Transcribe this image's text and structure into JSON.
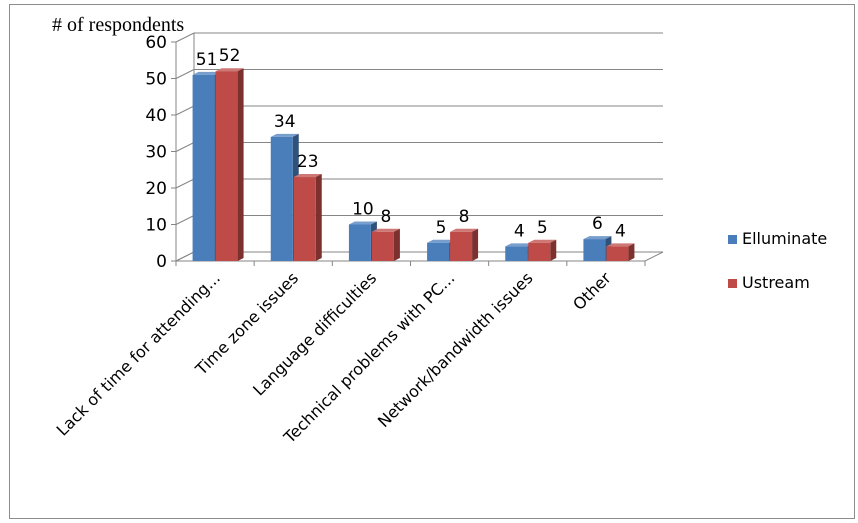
{
  "chart_data": {
    "type": "bar",
    "title": "",
    "ylabel": "# of respondents",
    "xlabel": "",
    "categories": [
      "Lack of time for attending...",
      "Time zone issues",
      "Language difficulties",
      "Technical problems with PC...",
      "Network/bandwidth issues",
      "Other"
    ],
    "series": [
      {
        "name": "Elluminate",
        "values": [
          51,
          34,
          10,
          5,
          4,
          6
        ],
        "color": "#4a7ebb"
      },
      {
        "name": "Ustream",
        "values": [
          52,
          23,
          8,
          8,
          5,
          4
        ],
        "color": "#be4b48"
      }
    ],
    "ylim": [
      0,
      60
    ],
    "yticks": [
      0,
      10,
      20,
      30,
      40,
      50,
      60
    ],
    "grid": true,
    "legend": "right",
    "style": "3d-clustered-column"
  }
}
